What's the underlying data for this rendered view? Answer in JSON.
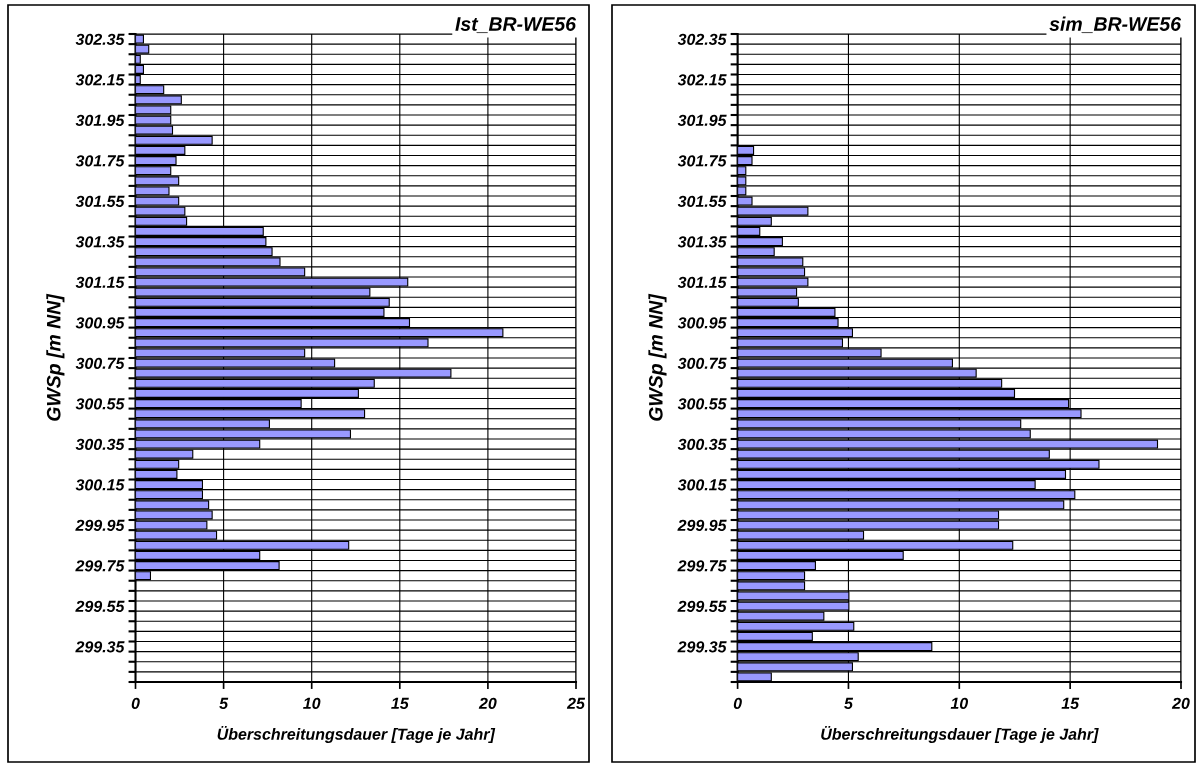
{
  "chart_data": [
    {
      "type": "bar",
      "orientation": "horizontal",
      "title": "Ist_BR-WE56",
      "xlabel": "Überschreitungsdauer [Tage je Jahr]",
      "ylabel": "GWSp [m NN]",
      "grid": true,
      "color": "#9999ff",
      "categories": [
        "302.35",
        null,
        null,
        null,
        "302.15",
        null,
        null,
        null,
        "301.95",
        null,
        null,
        null,
        "301.75",
        null,
        null,
        null,
        "301.55",
        null,
        null,
        null,
        "301.35",
        null,
        null,
        null,
        "301.15",
        null,
        null,
        null,
        "300.95",
        null,
        null,
        null,
        "300.75",
        null,
        null,
        null,
        "300.55",
        null,
        null,
        null,
        "300.35",
        null,
        null,
        null,
        "300.15",
        null,
        null,
        null,
        "299.95",
        null,
        null,
        null,
        "299.75",
        null,
        null,
        null,
        "299.55",
        null,
        null,
        null,
        "299.35",
        null,
        null,
        null
      ],
      "values": [
        0.45,
        0.75,
        0.27,
        0.45,
        0.27,
        1.6,
        2.6,
        2.0,
        2.0,
        2.1,
        4.35,
        2.8,
        2.3,
        2.0,
        2.45,
        1.9,
        2.45,
        2.8,
        2.9,
        7.25,
        7.4,
        7.75,
        8.2,
        9.6,
        15.45,
        13.3,
        14.4,
        14.1,
        15.55,
        20.85,
        16.6,
        9.6,
        11.3,
        17.9,
        13.55,
        12.65,
        9.4,
        13.0,
        7.6,
        12.2,
        7.05,
        3.25,
        2.45,
        2.35,
        3.8,
        3.8,
        4.15,
        4.35,
        4.05,
        4.6,
        12.1,
        7.05,
        8.15,
        0.85,
        null,
        null,
        null,
        null,
        null,
        null,
        null,
        null,
        null,
        null
      ],
      "xlim": [
        0,
        25
      ],
      "xticks": [
        0,
        5,
        10,
        15,
        20,
        25
      ]
    },
    {
      "type": "bar",
      "orientation": "horizontal",
      "title": "sim_BR-WE56",
      "xlabel": "Überschreitungsdauer [Tage je Jahr]",
      "ylabel": "GWSp [m NN]",
      "grid": true,
      "color": "#9999ff",
      "categories": [
        "302.35",
        null,
        null,
        null,
        "302.15",
        null,
        null,
        null,
        "301.95",
        null,
        null,
        null,
        "301.75",
        null,
        null,
        null,
        "301.55",
        null,
        null,
        null,
        "301.35",
        null,
        null,
        null,
        "301.15",
        null,
        null,
        null,
        "300.95",
        null,
        null,
        null,
        "300.75",
        null,
        null,
        null,
        "300.55",
        null,
        null,
        null,
        "300.35",
        null,
        null,
        null,
        "300.15",
        null,
        null,
        null,
        "299.95",
        null,
        null,
        null,
        "299.75",
        null,
        null,
        null,
        "299.55",
        null,
        null,
        null,
        "299.35",
        null,
        null,
        null
      ],
      "values": [
        null,
        null,
        null,
        null,
        null,
        null,
        null,
        null,
        null,
        null,
        null,
        0.72,
        0.65,
        0.37,
        0.37,
        0.37,
        0.65,
        3.17,
        1.52,
        1.0,
        2.02,
        1.65,
        2.94,
        3.02,
        3.17,
        2.66,
        2.74,
        4.39,
        4.53,
        5.18,
        4.73,
        6.47,
        9.69,
        10.76,
        11.91,
        12.49,
        14.93,
        15.49,
        12.77,
        13.2,
        18.94,
        14.06,
        16.3,
        14.79,
        13.42,
        15.21,
        14.71,
        11.77,
        11.77,
        5.68,
        12.41,
        7.47,
        3.51,
        3.02,
        3.02,
        5.02,
        5.02,
        3.89,
        5.24,
        3.37,
        8.76,
        5.44,
        5.18,
        1.52
      ],
      "xlim": [
        0,
        20
      ],
      "xticks": [
        0,
        5,
        10,
        15,
        20
      ]
    }
  ]
}
